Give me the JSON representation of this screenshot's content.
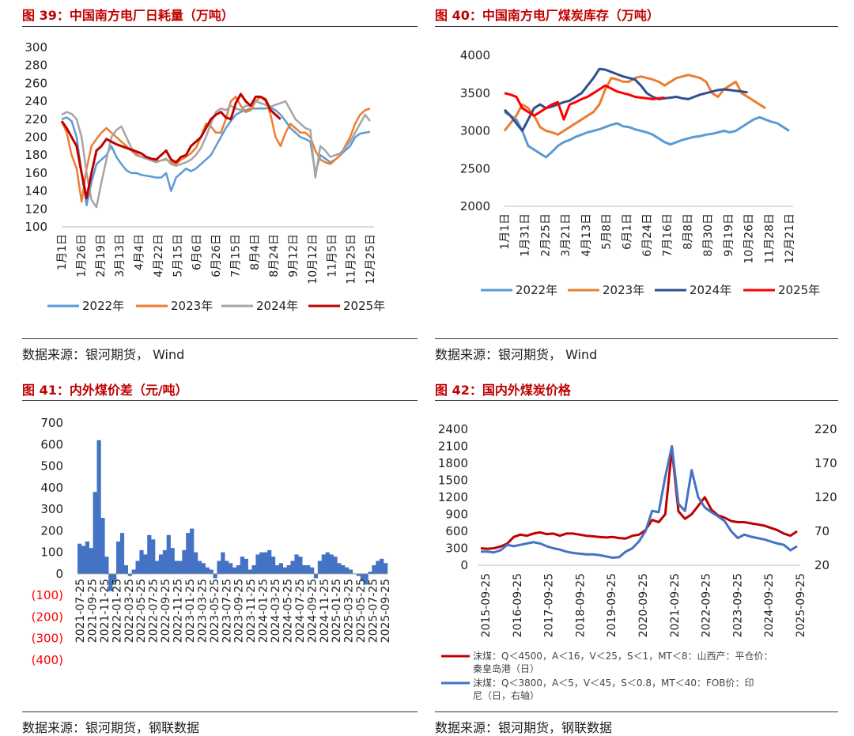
{
  "panels": [
    {
      "title": "图 39：中国南方电厂日耗量（万吨）",
      "source": "数据来源：银河期货，  Wind"
    },
    {
      "title": "图 40：中国南方电厂煤炭库存（万吨）",
      "source": "数据来源：银河期货，  Wind"
    },
    {
      "title": "图 41：内外煤价差（元/吨）",
      "source": "数据来源：银河期货，钢联数据"
    },
    {
      "title": "图 42：国内外煤炭价格",
      "source": "数据来源：银河期货，钢联数据"
    }
  ],
  "colors": {
    "s2022": "#5b9bd5",
    "s2023": "#ed7d31",
    "s2024": "#a5a5a5",
    "s2025": "#c00000",
    "s2024b": "#2f4f8f",
    "s2025b": "#ff0000",
    "bar": "#4472c4",
    "neg": "#ff0000",
    "dom": "#c00000",
    "imp": "#4472c4"
  },
  "chart_data": [
    {
      "type": "line",
      "ylim": [
        100,
        300
      ],
      "yticks": [
        "300",
        "280",
        "260",
        "240",
        "220",
        "200",
        "180",
        "160",
        "140",
        "120",
        "100"
      ],
      "x_ticks": [
        "1月1日",
        "1月26日",
        "2月19日",
        "3月13日",
        "4月4日",
        "4月22日",
        "5月15日",
        "6月6日",
        "6月26日",
        "7月15日",
        "8月4日",
        "8月24日",
        "9月12日",
        "10月12日",
        "11月5日",
        "11月25日",
        "12月25日"
      ],
      "series": [
        {
          "name": "2022年",
          "values": [
            220,
            222,
            218,
            200,
            160,
            124,
            150,
            170,
            175,
            180,
            190,
            178,
            170,
            163,
            160,
            160,
            158,
            157,
            156,
            155,
            155,
            160,
            140,
            155,
            160,
            165,
            162,
            165,
            170,
            175,
            180,
            190,
            200,
            210,
            218,
            225,
            228,
            230,
            232,
            232,
            232,
            232,
            233,
            230,
            225,
            218,
            210,
            205,
            200,
            198,
            195,
            160,
            180,
            176,
            172,
            175,
            180,
            185,
            190,
            200,
            204,
            205,
            206
          ]
        },
        {
          "name": "2023年",
          "values": [
            218,
            205,
            180,
            165,
            128,
            165,
            190,
            198,
            205,
            210,
            205,
            200,
            195,
            190,
            185,
            180,
            178,
            176,
            175,
            173,
            174,
            175,
            172,
            170,
            175,
            178,
            182,
            188,
            200,
            215,
            212,
            205,
            205,
            220,
            240,
            245,
            235,
            228,
            230,
            240,
            245,
            240,
            225,
            200,
            190,
            205,
            215,
            210,
            205,
            205,
            200,
            185,
            175,
            172,
            170,
            175,
            180,
            190,
            200,
            215,
            225,
            230,
            232
          ]
        },
        {
          "name": "2024年",
          "values": [
            225,
            228,
            226,
            220,
            200,
            160,
            130,
            122,
            150,
            175,
            200,
            208,
            212,
            200,
            188,
            182,
            178,
            176,
            174,
            172,
            174,
            176,
            170,
            168,
            170,
            172,
            175,
            180,
            188,
            200,
            215,
            228,
            232,
            230,
            235,
            232,
            230,
            235,
            235,
            240,
            238,
            236,
            234,
            236,
            238,
            240,
            230,
            220,
            215,
            210,
            208,
            155,
            190,
            185,
            178,
            180,
            182,
            188,
            195,
            205,
            215,
            225,
            218
          ]
        },
        {
          "name": "2025年",
          "values": [
            218,
            210,
            200,
            190,
            160,
            132,
            160,
            185,
            190,
            198,
            195,
            192,
            190,
            188,
            186,
            184,
            182,
            178,
            176,
            175,
            180,
            185,
            175,
            172,
            178,
            180,
            190,
            195,
            200,
            210,
            220,
            225,
            228,
            222,
            220,
            238,
            248,
            240,
            235,
            245,
            245,
            242,
            230,
            225,
            220
          ]
        }
      ]
    },
    {
      "type": "line",
      "ylim": [
        2000,
        4000
      ],
      "yticks": [
        "4000",
        "3500",
        "3000",
        "2500",
        "2000"
      ],
      "x_ticks": [
        "1月1日",
        "1月31日",
        "2月25日",
        "3月21日",
        "4月13日",
        "5月8日",
        "6月1日",
        "6月24日",
        "7月16日",
        "8月8日",
        "8月30日",
        "9月19日",
        "10月26日",
        "11月28日",
        "12月21日"
      ],
      "series": [
        {
          "name": "2022年",
          "values": [
            3250,
            3200,
            3150,
            3000,
            2800,
            2750,
            2700,
            2650,
            2720,
            2800,
            2850,
            2880,
            2920,
            2950,
            2980,
            3000,
            3020,
            3050,
            3080,
            3100,
            3060,
            3050,
            3020,
            3000,
            2980,
            2950,
            2900,
            2850,
            2820,
            2850,
            2880,
            2900,
            2920,
            2930,
            2950,
            2960,
            2980,
            3000,
            2980,
            3000,
            3050,
            3100,
            3150,
            3180,
            3150,
            3120,
            3100,
            3050,
            3000
          ]
        },
        {
          "name": "2023年",
          "values": [
            3000,
            3100,
            3200,
            3350,
            3300,
            3200,
            3050,
            3000,
            2980,
            2950,
            3000,
            3050,
            3100,
            3150,
            3200,
            3250,
            3350,
            3550,
            3700,
            3680,
            3650,
            3650,
            3700,
            3720,
            3700,
            3680,
            3650,
            3600,
            3650,
            3700,
            3720,
            3740,
            3720,
            3700,
            3650,
            3500,
            3450,
            3550,
            3600,
            3650,
            3500,
            3450,
            3400,
            3350,
            3300
          ]
        },
        {
          "name": "2024年",
          "values": [
            3280,
            3200,
            3100,
            3000,
            3150,
            3300,
            3350,
            3300,
            3320,
            3350,
            3380,
            3400,
            3450,
            3500,
            3600,
            3700,
            3820,
            3810,
            3780,
            3750,
            3720,
            3700,
            3680,
            3600,
            3500,
            3450,
            3420,
            3430,
            3440,
            3450,
            3430,
            3420,
            3450,
            3480,
            3500,
            3520,
            3540,
            3550,
            3540,
            3530,
            3520,
            3510
          ]
        },
        {
          "name": "2025年",
          "values": [
            3500,
            3480,
            3450,
            3300,
            3250,
            3200,
            3250,
            3300,
            3350,
            3380,
            3150,
            3350,
            3380,
            3420,
            3450,
            3500,
            3550,
            3600,
            3560,
            3520,
            3500,
            3480,
            3450,
            3440,
            3430,
            3420,
            3430,
            3440
          ]
        }
      ]
    },
    {
      "type": "bar",
      "ylim": [
        -400,
        700
      ],
      "yticks": [
        "700",
        "600",
        "500",
        "400",
        "300",
        "200",
        "100",
        "0",
        "(100)",
        "(200)",
        "(300)",
        "(400)"
      ],
      "x_ticks": [
        "2021-07-25",
        "2021-09-25",
        "2021-11-25",
        "2022-01-25",
        "2022-03-25",
        "2022-05-25",
        "2022-07-25",
        "2022-09-25",
        "2022-11-25",
        "2023-01-25",
        "2023-03-25",
        "2023-05-25",
        "2023-07-25",
        "2023-09-25",
        "2023-11-25",
        "2024-01-25",
        "2024-03-25",
        "2024-05-25",
        "2024-07-25",
        "2024-09-25",
        "2024-11-25",
        "2025-01-25",
        "2025-03-25",
        "2025-05-25",
        "2025-07-25",
        "2025-09-25"
      ],
      "values": [
        140,
        130,
        150,
        120,
        380,
        620,
        260,
        80,
        -80,
        -40,
        150,
        190,
        40,
        -10,
        20,
        60,
        110,
        90,
        180,
        160,
        60,
        90,
        110,
        180,
        120,
        60,
        60,
        110,
        190,
        210,
        100,
        60,
        50,
        30,
        20,
        -20,
        60,
        100,
        60,
        50,
        30,
        40,
        80,
        70,
        20,
        40,
        90,
        100,
        100,
        110,
        80,
        40,
        50,
        30,
        40,
        60,
        90,
        80,
        40,
        40,
        30,
        -20,
        60,
        90,
        100,
        90,
        80,
        50,
        40,
        30,
        20,
        0,
        -10,
        -30,
        -50,
        10,
        40,
        60,
        70,
        50
      ]
    },
    {
      "type": "line",
      "ylim": [
        0,
        2400
      ],
      "y2lim": [
        20,
        220
      ],
      "yticks": [
        "2400",
        "2100",
        "1800",
        "1500",
        "1200",
        "900",
        "600",
        "300",
        "0"
      ],
      "y2ticks": [
        "220",
        "170",
        "120",
        "70",
        "20"
      ],
      "x_ticks": [
        "2015-09-25",
        "2016-09-25",
        "2017-09-25",
        "2018-09-25",
        "2019-09-25",
        "2020-09-25",
        "2021-09-25",
        "2022-09-25",
        "2023-09-25",
        "2024-09-25",
        "2025-09-25"
      ],
      "series": [
        {
          "name": "沫煤：Q＜4500，A＜16，V＜25，S＜1，MT＜8：山西产：平仓价：秦皇岛港（日）",
          "values": [
            300,
            290,
            300,
            330,
            380,
            500,
            540,
            520,
            560,
            580,
            550,
            560,
            520,
            560,
            560,
            540,
            520,
            510,
            500,
            490,
            500,
            480,
            470,
            520,
            540,
            620,
            800,
            760,
            900,
            2050,
            950,
            820,
            900,
            1050,
            1200,
            980,
            880,
            840,
            780,
            760,
            760,
            740,
            720,
            700,
            660,
            620,
            560,
            520,
            600
          ]
        },
        {
          "name": "沫煤：Q＜3800，A＜5，V＜45，S＜0.8，MT＜40：FOB价：印尼（日，右轴）",
          "values": [
            40,
            40,
            39,
            42,
            50,
            48,
            50,
            52,
            54,
            52,
            48,
            45,
            43,
            40,
            38,
            37,
            36,
            36,
            35,
            33,
            31,
            32,
            40,
            45,
            55,
            70,
            100,
            98,
            150,
            195,
            110,
            100,
            160,
            120,
            105,
            98,
            92,
            85,
            70,
            60,
            65,
            62,
            60,
            58,
            55,
            52,
            50,
            42,
            48
          ]
        }
      ]
    }
  ]
}
